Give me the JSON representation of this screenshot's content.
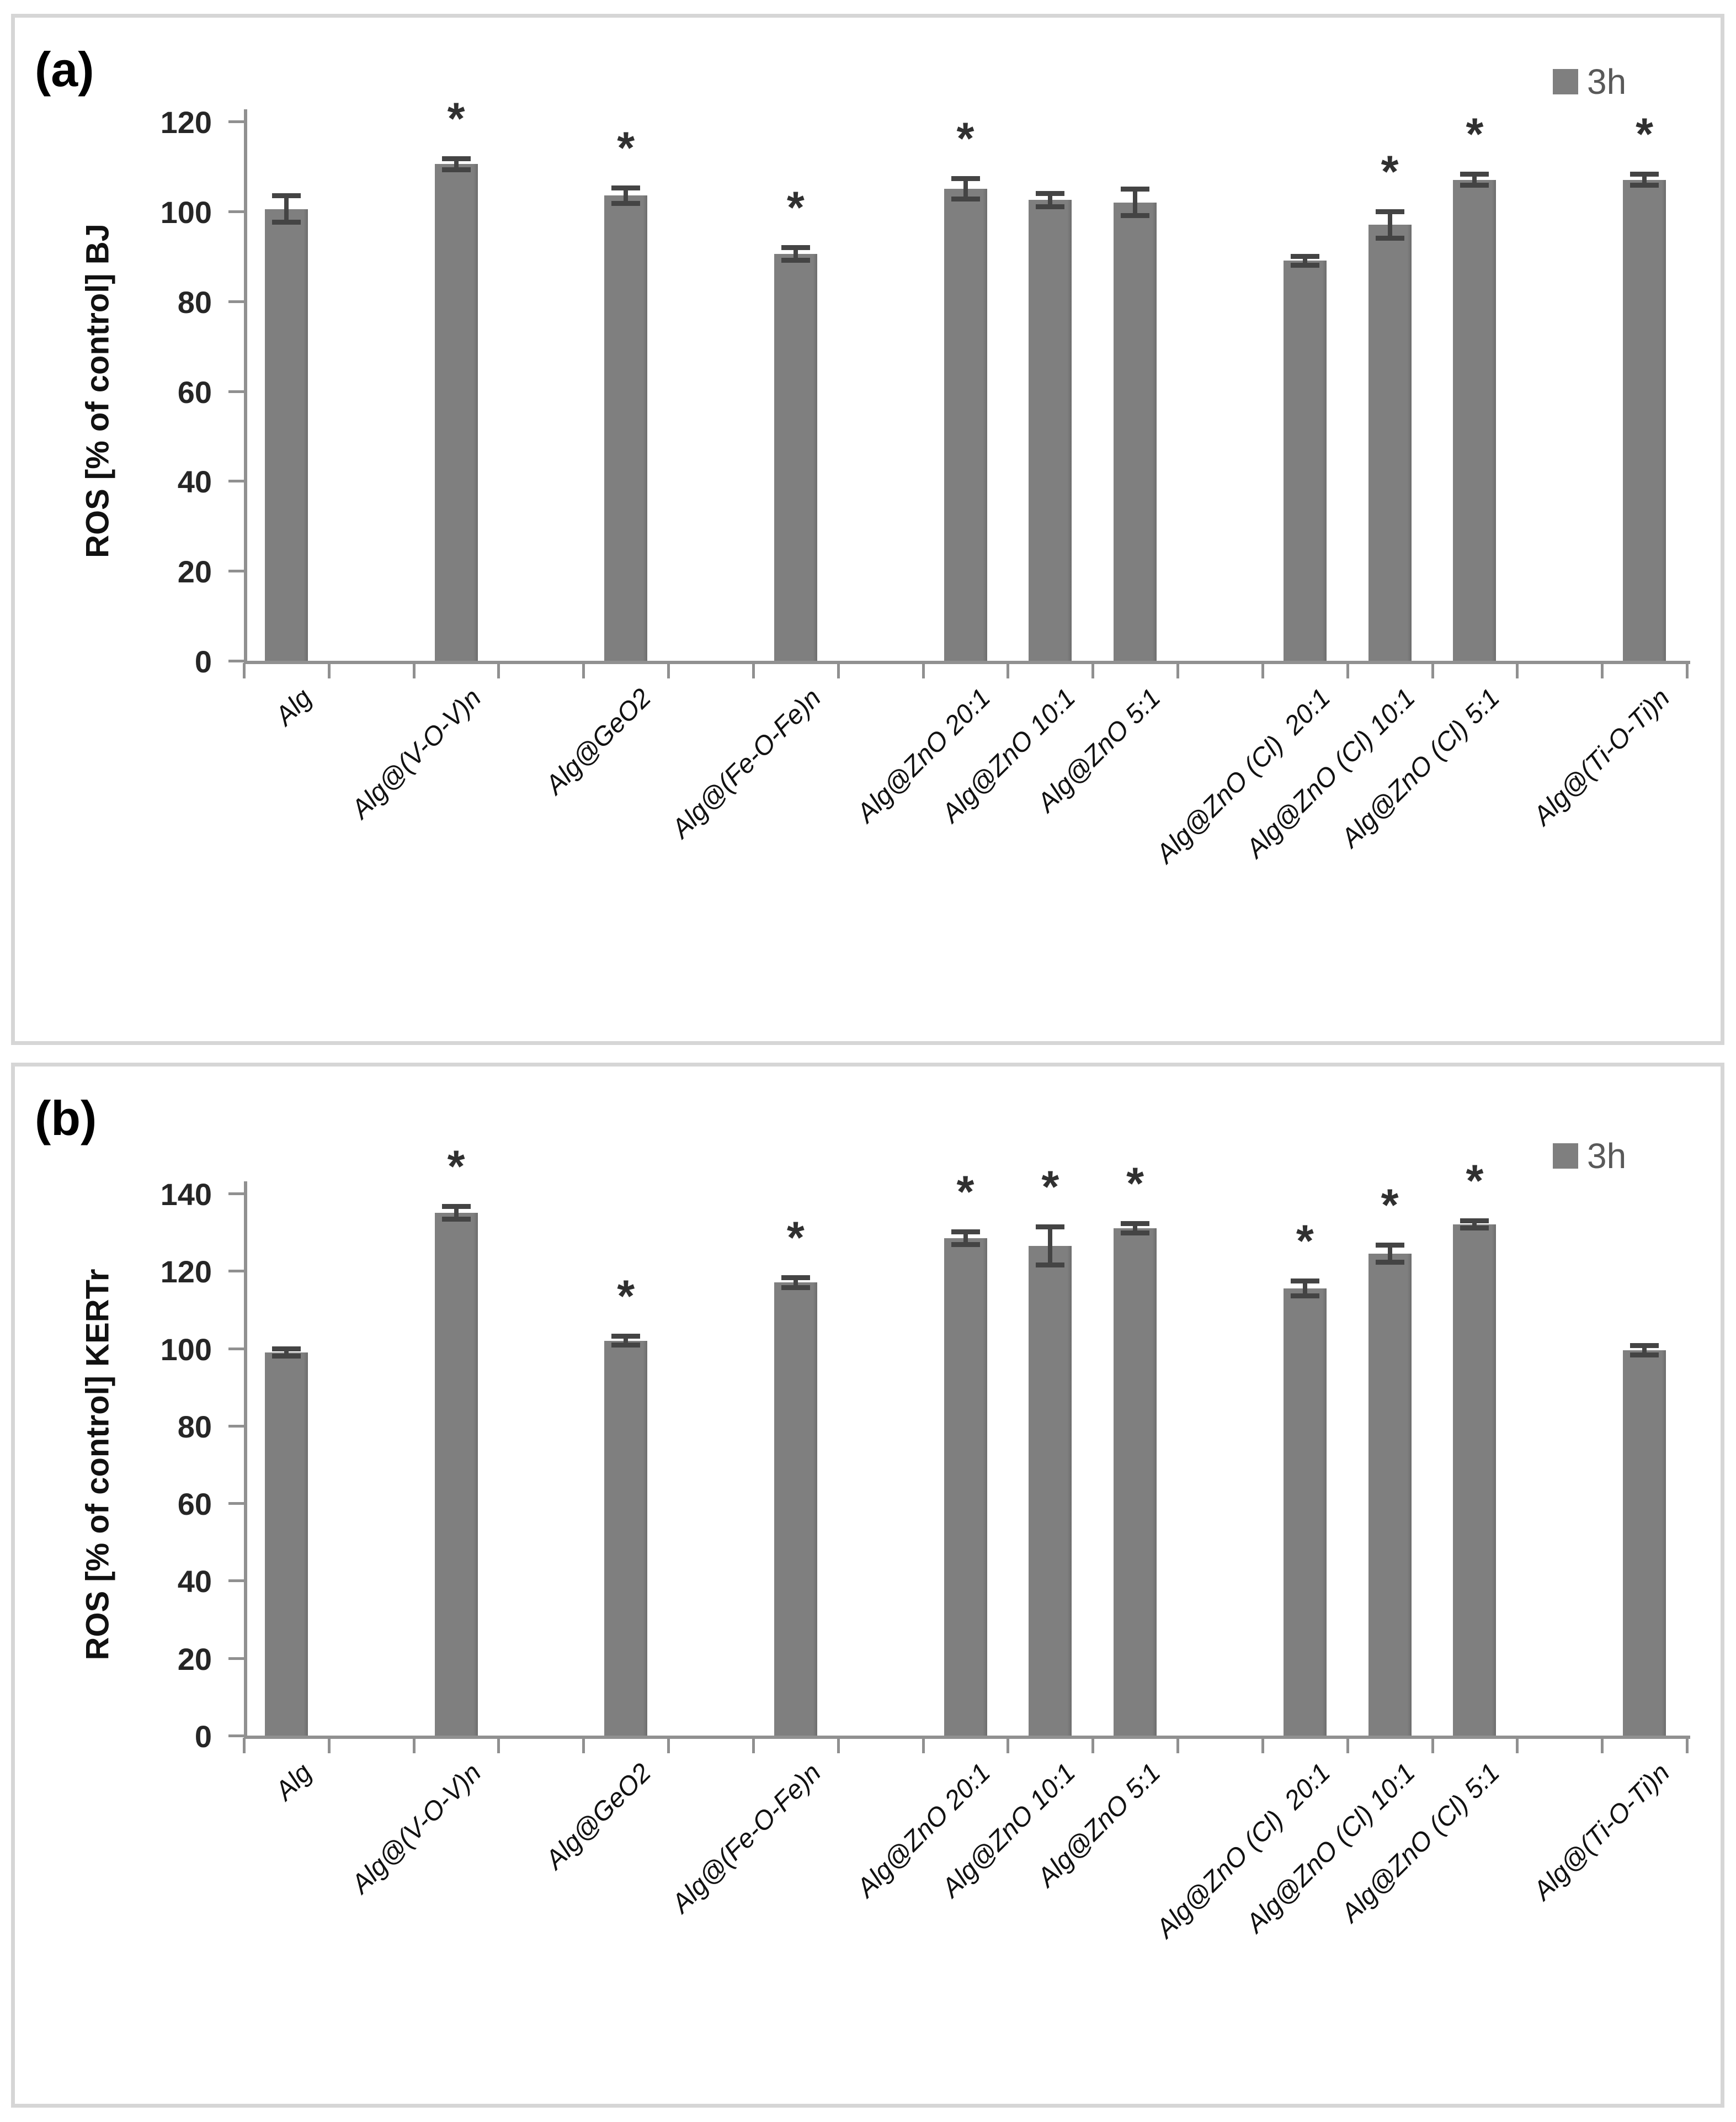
{
  "figure": {
    "background": "#ffffff",
    "panel_border_color": "#d6d6d6",
    "bar_color": "#7f7f7f",
    "error_bar_color": "#444444",
    "axis_color": "#909090",
    "legend_text_color": "#595959",
    "significance_marker": "*"
  },
  "chart_data": [
    {
      "panel": "(a)",
      "type": "bar",
      "title": "",
      "ylabel": "ROS [% of control] BJ",
      "xlabel": "",
      "legend": "3h",
      "legend_position": "top-right",
      "grid": false,
      "ylim": [
        0,
        120
      ],
      "yticks": [
        0,
        20,
        40,
        60,
        80,
        100,
        120
      ],
      "categories": [
        "Alg",
        "Alg@(V-O-V)n",
        "Alg@GeO2",
        "Alg@(Fe-O-Fe)n",
        "Alg@ZnO 20:1",
        "Alg@ZnO 10:1",
        "Alg@ZnO 5:1",
        "Alg@ZnO (Cl)  20:1",
        "Alg@ZnO (Cl) 10:1",
        "Alg@ZnO (Cl) 5:1",
        "Alg@(Ti-O-Ti)n"
      ],
      "series": [
        {
          "name": "3h",
          "values": [
            100.5,
            110.5,
            103.5,
            90.5,
            105,
            102.5,
            102,
            89,
            97,
            107,
            107
          ],
          "errors": [
            3,
            1.3,
            1.8,
            1.5,
            2.3,
            1.5,
            3,
            1,
            3,
            1.3,
            1.3
          ],
          "significant": [
            false,
            true,
            true,
            true,
            true,
            false,
            false,
            false,
            true,
            true,
            true
          ]
        }
      ]
    },
    {
      "panel": "(b)",
      "type": "bar",
      "title": "",
      "ylabel": "ROS [% of control] KERTr",
      "xlabel": "",
      "legend": "3h",
      "legend_position": "top-right",
      "grid": false,
      "ylim": [
        0,
        140
      ],
      "yticks": [
        0,
        20,
        40,
        60,
        80,
        100,
        120,
        140
      ],
      "categories": [
        "Alg",
        "Alg@(V-O-V)n",
        "Alg@GeO2",
        "Alg@(Fe-O-Fe)n",
        "Alg@ZnO 20:1",
        "Alg@ZnO 10:1",
        "Alg@ZnO 5:1",
        "Alg@ZnO (Cl)  20:1",
        "Alg@ZnO (Cl) 10:1",
        "Alg@ZnO (Cl) 5:1",
        "Alg@(Ti-O-Ti)n"
      ],
      "series": [
        {
          "name": "3h",
          "values": [
            99,
            135,
            102,
            117,
            128.5,
            126.5,
            131,
            115.5,
            124.5,
            132,
            99.5
          ],
          "errors": [
            1,
            1.7,
            1.2,
            1.4,
            1.7,
            5,
            1.3,
            2,
            2.3,
            1,
            1.3
          ],
          "significant": [
            false,
            true,
            true,
            true,
            true,
            true,
            true,
            true,
            true,
            true,
            false
          ]
        }
      ]
    }
  ]
}
